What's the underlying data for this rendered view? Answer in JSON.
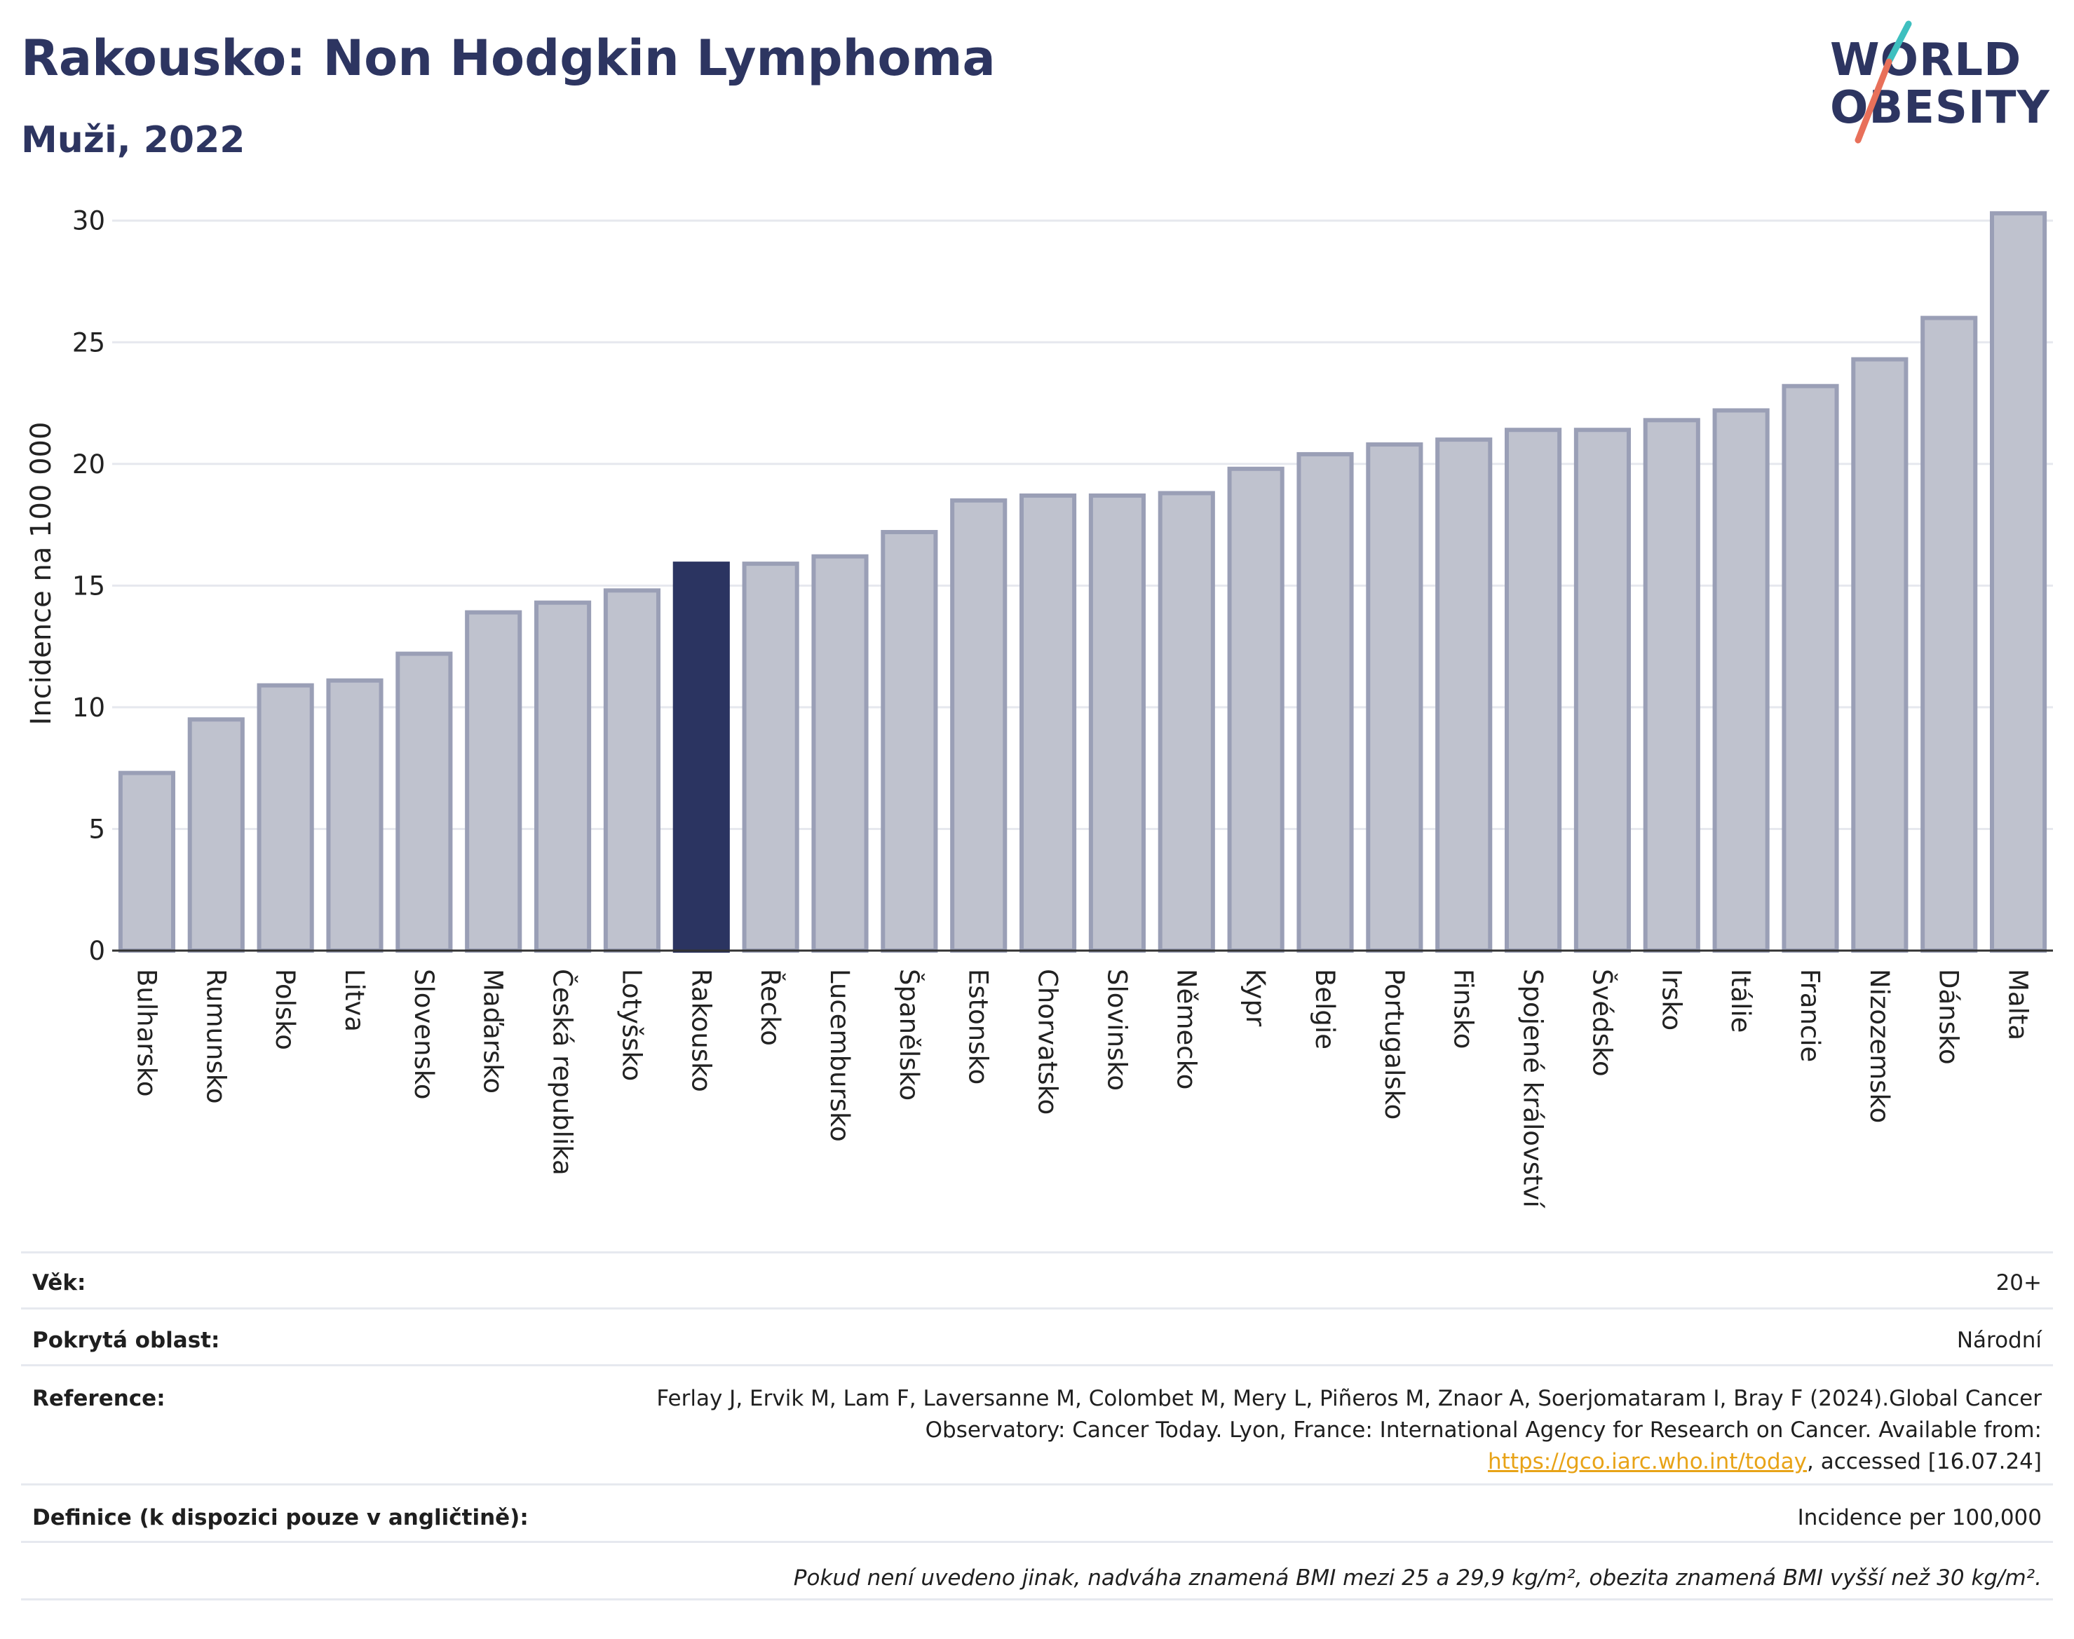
{
  "header": {
    "title": "Rakousko: Non Hodgkin Lymphoma",
    "subtitle": "Muži, 2022",
    "logo_line1": "WORLD",
    "logo_line2": "OBESITY"
  },
  "colors": {
    "bar_default": "#bfc2ce",
    "bar_default_border": "#9a9fb6",
    "bar_highlight": "#2b3461",
    "title": "#2d3561",
    "logo_slash_top": "#3ebfbf",
    "logo_slash_bottom": "#e8705a"
  },
  "chart_data": {
    "type": "bar",
    "ylabel": "Incidence na 100 000",
    "xlabel": "",
    "ylim": [
      0,
      31
    ],
    "yticks": [
      0,
      5,
      10,
      15,
      20,
      25,
      30
    ],
    "grid": true,
    "highlight": "Rakousko",
    "categories": [
      "Bulharsko",
      "Rumunsko",
      "Polsko",
      "Litva",
      "Slovensko",
      "Maďarsko",
      "Česká republika",
      "Lotyšsko",
      "Rakousko",
      "Řecko",
      "Lucembursko",
      "Španělsko",
      "Estonsko",
      "Chorvatsko",
      "Slovinsko",
      "Německo",
      "Kypr",
      "Belgie",
      "Portugalsko",
      "Finsko",
      "Spojené království",
      "Švédsko",
      "Irsko",
      "Itálie",
      "Francie",
      "Nizozemsko",
      "Dánsko",
      "Malta"
    ],
    "values": [
      7.3,
      9.5,
      10.9,
      11.1,
      12.2,
      13.9,
      14.3,
      14.8,
      15.9,
      15.9,
      16.2,
      17.2,
      18.5,
      18.7,
      18.7,
      18.8,
      19.8,
      20.4,
      20.8,
      21.0,
      21.4,
      21.4,
      21.8,
      22.2,
      23.2,
      24.3,
      26.0,
      30.3
    ]
  },
  "info": {
    "age_label": "Věk:",
    "age_value": "20+",
    "area_label": "Pokrytá oblast:",
    "area_value": "Národní",
    "ref_label": "Reference:",
    "ref_text_1": "Ferlay J, Ervik M, Lam F, Laversanne M, Colombet M, Mery L, Piñeros M, Znaor A, Soerjomataram I, Bray F (2024).Global Cancer Observatory: Cancer Today. Lyon, France: International Agency for Research on Cancer. Available from: ",
    "ref_link": "https://gco.iarc.who.int/today",
    "ref_text_2": ", accessed [16.07.24]",
    "def_label": "Definice (k dispozici pouze v angličtině):",
    "def_value": "Incidence per 100,000",
    "note": "Pokud není uvedeno jinak, nadváha znamená BMI mezi 25 a 29,9 kg/m², obezita znamená BMI vyšší než 30 kg/m²."
  }
}
